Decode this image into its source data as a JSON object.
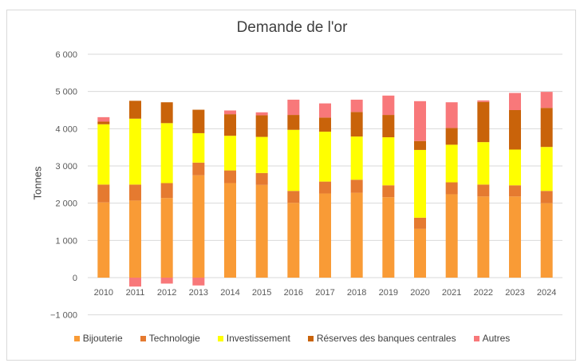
{
  "chart_data": {
    "type": "bar",
    "stacked": true,
    "title": "Demande de l'or",
    "xlabel": "",
    "ylabel": "Tonnes",
    "ylim": [
      -1000,
      6000
    ],
    "yticks": [
      -1000,
      0,
      1000,
      2000,
      3000,
      4000,
      5000,
      6000
    ],
    "ytick_labels": [
      "-1 000",
      "0",
      "1 000",
      "2 000",
      "3 000",
      "4 000",
      "5 000",
      "6 000"
    ],
    "grid": true,
    "legend_position": "bottom",
    "categories": [
      "2010",
      "2011",
      "2012",
      "2013",
      "2014",
      "2015",
      "2016",
      "2017",
      "2018",
      "2019",
      "2020",
      "2021",
      "2022",
      "2023",
      "2024"
    ],
    "series": [
      {
        "name": "Bijouterie",
        "color": "#F99B36",
        "values": [
          2020,
          2070,
          2140,
          2750,
          2540,
          2490,
          2010,
          2260,
          2280,
          2160,
          1310,
          2240,
          2180,
          2180,
          2000
        ]
      },
      {
        "name": "Technologie",
        "color": "#E57A30",
        "values": [
          480,
          430,
          400,
          340,
          340,
          320,
          320,
          320,
          350,
          320,
          300,
          320,
          320,
          300,
          330
        ]
      },
      {
        "name": "Investissement",
        "color": "#FFFF00",
        "values": [
          1620,
          1770,
          1610,
          790,
          930,
          970,
          1640,
          1340,
          1160,
          1290,
          1820,
          1010,
          1140,
          960,
          1180
        ]
      },
      {
        "name": "Réserves des banques centrales",
        "color": "#C9630A",
        "values": [
          70,
          480,
          560,
          630,
          580,
          580,
          400,
          380,
          660,
          600,
          240,
          450,
          1080,
          1060,
          1050
        ]
      },
      {
        "name": "Autres",
        "color": "#F8787A",
        "values": [
          120,
          -240,
          -160,
          -210,
          100,
          80,
          410,
          380,
          330,
          520,
          1070,
          690,
          40,
          460,
          430
        ]
      }
    ]
  }
}
